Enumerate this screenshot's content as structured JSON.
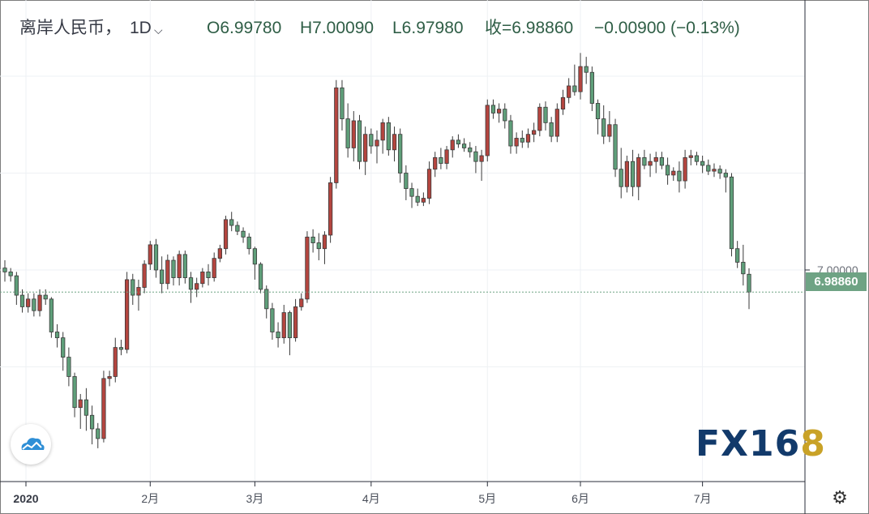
{
  "header": {
    "symbol": "离岸人民币，",
    "interval": "1D",
    "open": "O6.99780",
    "high": "H7.00090",
    "low": "L6.97980",
    "close": "收=6.98860",
    "change": "−0.00900 (−0.13%)"
  },
  "price_axis": {
    "label_7": "7.00000",
    "last_price_badge": "6.98860"
  },
  "logo": {
    "text_main": "FX16",
    "text_accent": "8"
  },
  "colors": {
    "up": "#5f9f7a",
    "down": "#b4453f",
    "badge": "#6ea384",
    "grid": "#eef1f4"
  },
  "icons": {
    "dropdown": "chevron-down-icon",
    "settings": "gear-icon",
    "cloud": "cloud-icon"
  },
  "chart_data": {
    "type": "candlestick",
    "title": "离岸人民币，1D",
    "x_tick_labels": [
      "2020",
      "2月",
      "3月",
      "4月",
      "5月",
      "6月",
      "7月"
    ],
    "y_tick_labels": [
      "7.00000"
    ],
    "ylim": [
      6.91,
      7.18
    ],
    "last_price": 6.9886,
    "grid": true,
    "candles": [
      {
        "o": 7.001,
        "h": 7.005,
        "l": 6.994,
        "c": 6.999,
        "month": "2020"
      },
      {
        "o": 6.999,
        "h": 7.001,
        "l": 6.994,
        "c": 6.997
      },
      {
        "o": 6.997,
        "h": 6.999,
        "l": 6.982,
        "c": 6.987
      },
      {
        "o": 6.987,
        "h": 6.99,
        "l": 6.978,
        "c": 6.981
      },
      {
        "o": 6.981,
        "h": 6.988,
        "l": 6.978,
        "c": 6.985
      },
      {
        "o": 6.985,
        "h": 6.988,
        "l": 6.976,
        "c": 6.979
      },
      {
        "o": 6.979,
        "h": 6.99,
        "l": 6.976,
        "c": 6.987
      },
      {
        "o": 6.987,
        "h": 6.99,
        "l": 6.982,
        "c": 6.985
      },
      {
        "o": 6.985,
        "h": 6.986,
        "l": 6.965,
        "c": 6.968
      },
      {
        "o": 6.968,
        "h": 6.972,
        "l": 6.96,
        "c": 6.965
      },
      {
        "o": 6.965,
        "h": 6.968,
        "l": 6.948,
        "c": 6.955
      },
      {
        "o": 6.955,
        "h": 6.96,
        "l": 6.94,
        "c": 6.945
      },
      {
        "o": 6.945,
        "h": 6.947,
        "l": 6.924,
        "c": 6.929
      },
      {
        "o": 6.929,
        "h": 6.936,
        "l": 6.918,
        "c": 6.933
      },
      {
        "o": 6.933,
        "h": 6.939,
        "l": 6.917,
        "c": 6.925
      },
      {
        "o": 6.925,
        "h": 6.93,
        "l": 6.91,
        "c": 6.918
      },
      {
        "o": 6.918,
        "h": 6.921,
        "l": 6.908,
        "c": 6.913
      },
      {
        "o": 6.913,
        "h": 6.948,
        "l": 6.911,
        "c": 6.944
      },
      {
        "o": 6.944,
        "h": 6.948,
        "l": 6.94,
        "c": 6.945
      },
      {
        "o": 6.945,
        "h": 6.965,
        "l": 6.942,
        "c": 6.96
      },
      {
        "o": 6.96,
        "h": 6.964,
        "l": 6.956,
        "c": 6.959
      },
      {
        "o": 6.959,
        "h": 6.999,
        "l": 6.957,
        "c": 6.995
      },
      {
        "o": 6.995,
        "h": 6.998,
        "l": 6.982,
        "c": 6.987
      },
      {
        "o": 6.987,
        "h": 6.995,
        "l": 6.979,
        "c": 6.991
      },
      {
        "o": 6.991,
        "h": 7.005,
        "l": 6.988,
        "c": 7.003
      },
      {
        "o": 7.003,
        "h": 7.015,
        "l": 7.0,
        "c": 7.013,
        "month": "2月"
      },
      {
        "o": 7.013,
        "h": 7.016,
        "l": 6.996,
        "c": 7.0
      },
      {
        "o": 7.0,
        "h": 7.007,
        "l": 6.988,
        "c": 6.993
      },
      {
        "o": 6.993,
        "h": 7.008,
        "l": 6.99,
        "c": 7.005
      },
      {
        "o": 7.005,
        "h": 7.007,
        "l": 6.992,
        "c": 6.996
      },
      {
        "o": 6.996,
        "h": 7.01,
        "l": 6.992,
        "c": 7.008
      },
      {
        "o": 7.008,
        "h": 7.01,
        "l": 6.993,
        "c": 6.996
      },
      {
        "o": 6.996,
        "h": 6.999,
        "l": 6.983,
        "c": 6.99
      },
      {
        "o": 6.99,
        "h": 6.996,
        "l": 6.986,
        "c": 6.993
      },
      {
        "o": 6.993,
        "h": 7.001,
        "l": 6.991,
        "c": 6.999
      },
      {
        "o": 6.999,
        "h": 7.003,
        "l": 6.992,
        "c": 6.996
      },
      {
        "o": 6.996,
        "h": 7.009,
        "l": 6.994,
        "c": 7.006
      },
      {
        "o": 7.006,
        "h": 7.013,
        "l": 7.004,
        "c": 7.011
      },
      {
        "o": 7.011,
        "h": 7.028,
        "l": 7.008,
        "c": 7.026
      },
      {
        "o": 7.026,
        "h": 7.03,
        "l": 7.02,
        "c": 7.023
      },
      {
        "o": 7.023,
        "h": 7.025,
        "l": 7.018,
        "c": 7.02
      },
      {
        "o": 7.02,
        "h": 7.022,
        "l": 7.014,
        "c": 7.017
      },
      {
        "o": 7.017,
        "h": 7.019,
        "l": 7.008,
        "c": 7.011
      },
      {
        "o": 7.011,
        "h": 7.012,
        "l": 6.995,
        "c": 7.003,
        "month": "3月"
      },
      {
        "o": 7.003,
        "h": 7.004,
        "l": 6.988,
        "c": 6.99
      },
      {
        "o": 6.99,
        "h": 6.992,
        "l": 6.975,
        "c": 6.98
      },
      {
        "o": 6.98,
        "h": 6.983,
        "l": 6.964,
        "c": 6.968
      },
      {
        "o": 6.968,
        "h": 6.973,
        "l": 6.96,
        "c": 6.965
      },
      {
        "o": 6.965,
        "h": 6.982,
        "l": 6.962,
        "c": 6.978
      },
      {
        "o": 6.978,
        "h": 6.979,
        "l": 6.956,
        "c": 6.965
      },
      {
        "o": 6.965,
        "h": 6.985,
        "l": 6.963,
        "c": 6.981
      },
      {
        "o": 6.981,
        "h": 6.988,
        "l": 6.979,
        "c": 6.985
      },
      {
        "o": 6.985,
        "h": 7.02,
        "l": 6.983,
        "c": 7.017
      },
      {
        "o": 7.017,
        "h": 7.021,
        "l": 7.009,
        "c": 7.014
      },
      {
        "o": 7.014,
        "h": 7.019,
        "l": 7.005,
        "c": 7.011
      },
      {
        "o": 7.011,
        "h": 7.02,
        "l": 7.003,
        "c": 7.018
      },
      {
        "o": 7.018,
        "h": 7.048,
        "l": 7.014,
        "c": 7.045
      },
      {
        "o": 7.045,
        "h": 7.098,
        "l": 7.042,
        "c": 7.094
      },
      {
        "o": 7.094,
        "h": 7.098,
        "l": 7.072,
        "c": 7.078
      },
      {
        "o": 7.078,
        "h": 7.086,
        "l": 7.058,
        "c": 7.063
      },
      {
        "o": 7.063,
        "h": 7.082,
        "l": 7.056,
        "c": 7.077
      },
      {
        "o": 7.077,
        "h": 7.08,
        "l": 7.052,
        "c": 7.056
      },
      {
        "o": 7.056,
        "h": 7.074,
        "l": 7.049,
        "c": 7.07
      },
      {
        "o": 7.07,
        "h": 7.073,
        "l": 7.06,
        "c": 7.064,
        "month": "4月"
      },
      {
        "o": 7.064,
        "h": 7.072,
        "l": 7.055,
        "c": 7.067
      },
      {
        "o": 7.067,
        "h": 7.078,
        "l": 7.06,
        "c": 7.076
      },
      {
        "o": 7.076,
        "h": 7.079,
        "l": 7.059,
        "c": 7.062
      },
      {
        "o": 7.062,
        "h": 7.074,
        "l": 7.056,
        "c": 7.07
      },
      {
        "o": 7.07,
        "h": 7.073,
        "l": 7.045,
        "c": 7.05
      },
      {
        "o": 7.05,
        "h": 7.054,
        "l": 7.036,
        "c": 7.042
      },
      {
        "o": 7.042,
        "h": 7.045,
        "l": 7.032,
        "c": 7.038
      },
      {
        "o": 7.038,
        "h": 7.042,
        "l": 7.033,
        "c": 7.035
      },
      {
        "o": 7.035,
        "h": 7.04,
        "l": 7.033,
        "c": 7.037
      },
      {
        "o": 7.037,
        "h": 7.056,
        "l": 7.034,
        "c": 7.052
      },
      {
        "o": 7.052,
        "h": 7.061,
        "l": 7.048,
        "c": 7.058
      },
      {
        "o": 7.058,
        "h": 7.063,
        "l": 7.052,
        "c": 7.055
      },
      {
        "o": 7.055,
        "h": 7.064,
        "l": 7.052,
        "c": 7.062
      },
      {
        "o": 7.062,
        "h": 7.069,
        "l": 7.058,
        "c": 7.067
      },
      {
        "o": 7.067,
        "h": 7.07,
        "l": 7.063,
        "c": 7.065
      },
      {
        "o": 7.065,
        "h": 7.068,
        "l": 7.061,
        "c": 7.063
      },
      {
        "o": 7.063,
        "h": 7.066,
        "l": 7.058,
        "c": 7.061
      },
      {
        "o": 7.061,
        "h": 7.064,
        "l": 7.05,
        "c": 7.056
      },
      {
        "o": 7.056,
        "h": 7.062,
        "l": 7.046,
        "c": 7.059
      },
      {
        "o": 7.059,
        "h": 7.088,
        "l": 7.056,
        "c": 7.085,
        "month": "5月"
      },
      {
        "o": 7.085,
        "h": 7.088,
        "l": 7.078,
        "c": 7.081
      },
      {
        "o": 7.081,
        "h": 7.086,
        "l": 7.076,
        "c": 7.083
      },
      {
        "o": 7.083,
        "h": 7.086,
        "l": 7.073,
        "c": 7.077
      },
      {
        "o": 7.077,
        "h": 7.08,
        "l": 7.06,
        "c": 7.064
      },
      {
        "o": 7.064,
        "h": 7.071,
        "l": 7.06,
        "c": 7.068
      },
      {
        "o": 7.068,
        "h": 7.072,
        "l": 7.063,
        "c": 7.066
      },
      {
        "o": 7.066,
        "h": 7.073,
        "l": 7.063,
        "c": 7.07
      },
      {
        "o": 7.07,
        "h": 7.076,
        "l": 7.066,
        "c": 7.072
      },
      {
        "o": 7.072,
        "h": 7.086,
        "l": 7.069,
        "c": 7.084
      },
      {
        "o": 7.084,
        "h": 7.087,
        "l": 7.072,
        "c": 7.076
      },
      {
        "o": 7.076,
        "h": 7.079,
        "l": 7.066,
        "c": 7.069
      },
      {
        "o": 7.069,
        "h": 7.086,
        "l": 7.066,
        "c": 7.083
      },
      {
        "o": 7.083,
        "h": 7.093,
        "l": 7.08,
        "c": 7.089
      },
      {
        "o": 7.089,
        "h": 7.099,
        "l": 7.086,
        "c": 7.095
      },
      {
        "o": 7.095,
        "h": 7.106,
        "l": 7.09,
        "c": 7.092
      },
      {
        "o": 7.092,
        "h": 7.112,
        "l": 7.088,
        "c": 7.105,
        "month": "6月"
      },
      {
        "o": 7.105,
        "h": 7.11,
        "l": 7.096,
        "c": 7.102
      },
      {
        "o": 7.102,
        "h": 7.105,
        "l": 7.082,
        "c": 7.086
      },
      {
        "o": 7.086,
        "h": 7.088,
        "l": 7.07,
        "c": 7.078
      },
      {
        "o": 7.078,
        "h": 7.085,
        "l": 7.065,
        "c": 7.069
      },
      {
        "o": 7.069,
        "h": 7.082,
        "l": 7.066,
        "c": 7.075
      },
      {
        "o": 7.075,
        "h": 7.078,
        "l": 7.048,
        "c": 7.052
      },
      {
        "o": 7.052,
        "h": 7.063,
        "l": 7.037,
        "c": 7.043
      },
      {
        "o": 7.043,
        "h": 7.059,
        "l": 7.04,
        "c": 7.056
      },
      {
        "o": 7.056,
        "h": 7.062,
        "l": 7.038,
        "c": 7.043
      },
      {
        "o": 7.043,
        "h": 7.06,
        "l": 7.036,
        "c": 7.058
      },
      {
        "o": 7.058,
        "h": 7.062,
        "l": 7.052,
        "c": 7.054
      },
      {
        "o": 7.054,
        "h": 7.06,
        "l": 7.048,
        "c": 7.056
      },
      {
        "o": 7.056,
        "h": 7.061,
        "l": 7.05,
        "c": 7.058
      },
      {
        "o": 7.058,
        "h": 7.061,
        "l": 7.052,
        "c": 7.054
      },
      {
        "o": 7.054,
        "h": 7.058,
        "l": 7.044,
        "c": 7.049
      },
      {
        "o": 7.049,
        "h": 7.053,
        "l": 7.046,
        "c": 7.051
      },
      {
        "o": 7.051,
        "h": 7.056,
        "l": 7.04,
        "c": 7.046
      },
      {
        "o": 7.046,
        "h": 7.062,
        "l": 7.042,
        "c": 7.058
      },
      {
        "o": 7.058,
        "h": 7.062,
        "l": 7.054,
        "c": 7.059
      },
      {
        "o": 7.059,
        "h": 7.061,
        "l": 7.054,
        "c": 7.056
      },
      {
        "o": 7.056,
        "h": 7.059,
        "l": 7.05,
        "c": 7.054,
        "month": "7月"
      },
      {
        "o": 7.054,
        "h": 7.057,
        "l": 7.049,
        "c": 7.051
      },
      {
        "o": 7.051,
        "h": 7.055,
        "l": 7.048,
        "c": 7.052
      },
      {
        "o": 7.052,
        "h": 7.054,
        "l": 7.047,
        "c": 7.05
      },
      {
        "o": 7.05,
        "h": 7.052,
        "l": 7.04,
        "c": 7.048
      },
      {
        "o": 7.048,
        "h": 7.05,
        "l": 7.007,
        "c": 7.011
      },
      {
        "o": 7.011,
        "h": 7.015,
        "l": 7.001,
        "c": 7.004
      },
      {
        "o": 7.004,
        "h": 7.013,
        "l": 6.992,
        "c": 6.998
      },
      {
        "o": 6.9978,
        "h": 7.0009,
        "l": 6.9798,
        "c": 6.9886
      }
    ]
  }
}
